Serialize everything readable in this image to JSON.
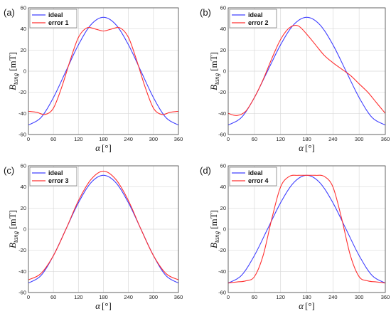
{
  "colors": {
    "ideal": "#4040ff",
    "error": "#ff3030",
    "grid": "#d9d9d9",
    "frame": "#444444"
  },
  "chart_data": [
    {
      "type": "line",
      "panel_label": "(a)",
      "xlabel_symbol": "α",
      "xlabel_unit": "[°]",
      "ylabel_main": "B",
      "ylabel_sub": "tang",
      "ylabel_unit": "[mT]",
      "xlim": [
        0,
        360
      ],
      "ylim": [
        -60,
        60
      ],
      "xticks": [
        "0",
        "60",
        "120",
        "180",
        "240",
        "300",
        "360"
      ],
      "yticks": [
        "-60",
        "-40",
        "-20",
        "0",
        "20",
        "40",
        "60"
      ],
      "grid": true,
      "legend": "top-left",
      "series": [
        {
          "name": "ideal",
          "color": "#4040ff",
          "x": [
            0,
            30,
            60,
            90,
            120,
            150,
            180,
            210,
            240,
            270,
            300,
            330,
            360
          ],
          "y": [
            -51,
            -44,
            -25,
            0,
            25,
            44,
            51,
            44,
            25,
            0,
            -25,
            -44,
            -51
          ]
        },
        {
          "name": "error 1",
          "color": "#ff3030",
          "x": [
            0,
            20,
            40,
            60,
            80,
            100,
            120,
            140,
            160,
            180,
            200,
            220,
            240,
            260,
            280,
            300,
            320,
            340,
            360
          ],
          "y": [
            -38,
            -39,
            -41,
            -35,
            -15,
            10,
            32,
            41,
            40,
            38,
            40,
            41,
            32,
            10,
            -15,
            -35,
            -41,
            -39,
            -38
          ]
        }
      ]
    },
    {
      "type": "line",
      "panel_label": "(b)",
      "xlabel_symbol": "α",
      "xlabel_unit": "[°]",
      "ylabel_main": "B",
      "ylabel_sub": "tang",
      "ylabel_unit": "[mT]",
      "xlim": [
        0,
        360
      ],
      "ylim": [
        -60,
        60
      ],
      "xticks": [
        "0",
        "60",
        "120",
        "180",
        "240",
        "300",
        "360"
      ],
      "yticks": [
        "-60",
        "-40",
        "-20",
        "0",
        "20",
        "40",
        "60"
      ],
      "grid": true,
      "legend": "top-left",
      "series": [
        {
          "name": "ideal",
          "color": "#4040ff",
          "x": [
            0,
            30,
            60,
            90,
            120,
            150,
            180,
            210,
            240,
            270,
            300,
            330,
            360
          ],
          "y": [
            -51,
            -44,
            -25,
            0,
            25,
            44,
            51,
            44,
            25,
            0,
            -25,
            -44,
            -51
          ]
        },
        {
          "name": "error 2",
          "color": "#ff3030",
          "x": [
            0,
            20,
            40,
            60,
            80,
            100,
            120,
            140,
            160,
            180,
            200,
            220,
            240,
            260,
            280,
            300,
            320,
            340,
            360
          ],
          "y": [
            -40,
            -42,
            -38,
            -25,
            -8,
            12,
            30,
            41,
            43,
            35,
            25,
            15,
            8,
            2,
            -4,
            -12,
            -20,
            -30,
            -40
          ]
        }
      ]
    },
    {
      "type": "line",
      "panel_label": "(c)",
      "xlabel_symbol": "α",
      "xlabel_unit": "[°]",
      "ylabel_main": "B",
      "ylabel_sub": "tang",
      "ylabel_unit": "[mT]",
      "xlim": [
        0,
        360
      ],
      "ylim": [
        -60,
        60
      ],
      "xticks": [
        "0",
        "60",
        "120",
        "180",
        "240",
        "300",
        "360"
      ],
      "yticks": [
        "-60",
        "-40",
        "-20",
        "0",
        "20",
        "40",
        "60"
      ],
      "grid": true,
      "legend": "top-left",
      "series": [
        {
          "name": "ideal",
          "color": "#4040ff",
          "x": [
            0,
            30,
            60,
            90,
            120,
            150,
            180,
            210,
            240,
            270,
            300,
            330,
            360
          ],
          "y": [
            -51,
            -44,
            -25,
            0,
            25,
            44,
            51,
            44,
            25,
            0,
            -25,
            -44,
            -51
          ]
        },
        {
          "name": "error 3",
          "color": "#ff3030",
          "x": [
            0,
            30,
            60,
            90,
            120,
            150,
            180,
            210,
            240,
            270,
            300,
            330,
            360
          ],
          "y": [
            -48,
            -42,
            -25,
            0,
            27,
            47,
            55,
            47,
            27,
            0,
            -25,
            -42,
            -48
          ]
        }
      ]
    },
    {
      "type": "line",
      "panel_label": "(d)",
      "xlabel_symbol": "α",
      "xlabel_unit": "[°]",
      "ylabel_main": "B",
      "ylabel_sub": "tang",
      "ylabel_unit": "[mT]",
      "xlim": [
        0,
        360
      ],
      "ylim": [
        -60,
        60
      ],
      "xticks": [
        "0",
        "60",
        "120",
        "180",
        "240",
        "300",
        "360"
      ],
      "yticks": [
        "-60",
        "-40",
        "-20",
        "0",
        "20",
        "40",
        "60"
      ],
      "grid": true,
      "legend": "top-left",
      "series": [
        {
          "name": "ideal",
          "color": "#4040ff",
          "x": [
            0,
            30,
            60,
            90,
            120,
            150,
            180,
            210,
            240,
            270,
            300,
            330,
            360
          ],
          "y": [
            -51,
            -44,
            -25,
            0,
            25,
            44,
            51,
            44,
            25,
            0,
            -25,
            -44,
            -51
          ]
        },
        {
          "name": "error 4",
          "color": "#ff3030",
          "x": [
            0,
            20,
            40,
            60,
            80,
            100,
            120,
            140,
            160,
            180,
            200,
            220,
            240,
            260,
            280,
            300,
            320,
            340,
            360
          ],
          "y": [
            -51,
            -50,
            -49,
            -45,
            -25,
            10,
            40,
            50,
            51,
            51,
            51,
            50,
            40,
            10,
            -25,
            -45,
            -49,
            -50,
            -51
          ]
        }
      ]
    }
  ]
}
